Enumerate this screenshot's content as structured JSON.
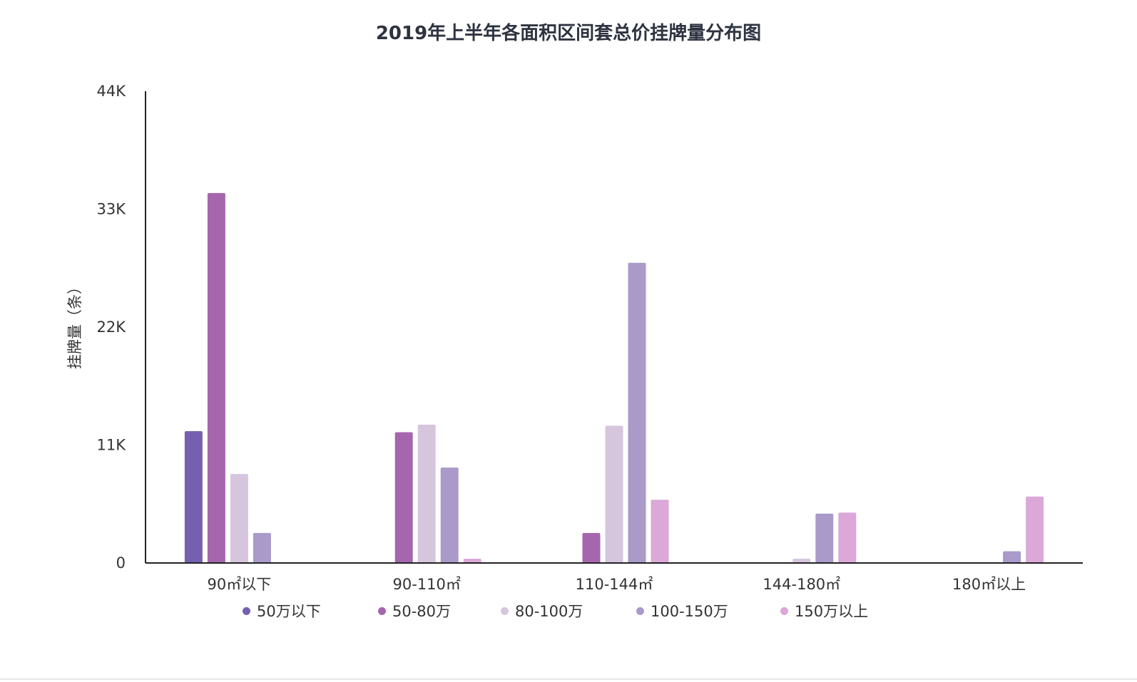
{
  "chart_data": {
    "type": "bar",
    "title": "2019年上半年各面积区间套总价挂牌量分布图",
    "ylabel": "挂牌量（条）",
    "xlabel": "",
    "ylim": [
      0,
      44000
    ],
    "yticks": [
      0,
      11000,
      22000,
      33000,
      44000
    ],
    "ytick_labels": [
      "0",
      "11K",
      "22K",
      "33K",
      "44K"
    ],
    "categories": [
      "90㎡以下",
      "90-110㎡",
      "110-144㎡",
      "144-180㎡",
      "180㎡以上"
    ],
    "series": [
      {
        "name": "50万以下",
        "color": "#7560b0",
        "values": [
          12300,
          0,
          0,
          0,
          0
        ]
      },
      {
        "name": "50-80万",
        "color": "#a566ad",
        "values": [
          34500,
          12200,
          2800,
          0,
          0
        ]
      },
      {
        "name": "80-100万",
        "color": "#d5c6de",
        "values": [
          8300,
          12900,
          12800,
          400,
          0
        ]
      },
      {
        "name": "100-150万",
        "color": "#a99ac9",
        "values": [
          2800,
          8900,
          28000,
          4600,
          1100
        ]
      },
      {
        "name": "150万以上",
        "color": "#dba8d8",
        "values": [
          0,
          400,
          5900,
          4700,
          6200
        ]
      }
    ],
    "legend_position": "bottom",
    "grid": false
  }
}
